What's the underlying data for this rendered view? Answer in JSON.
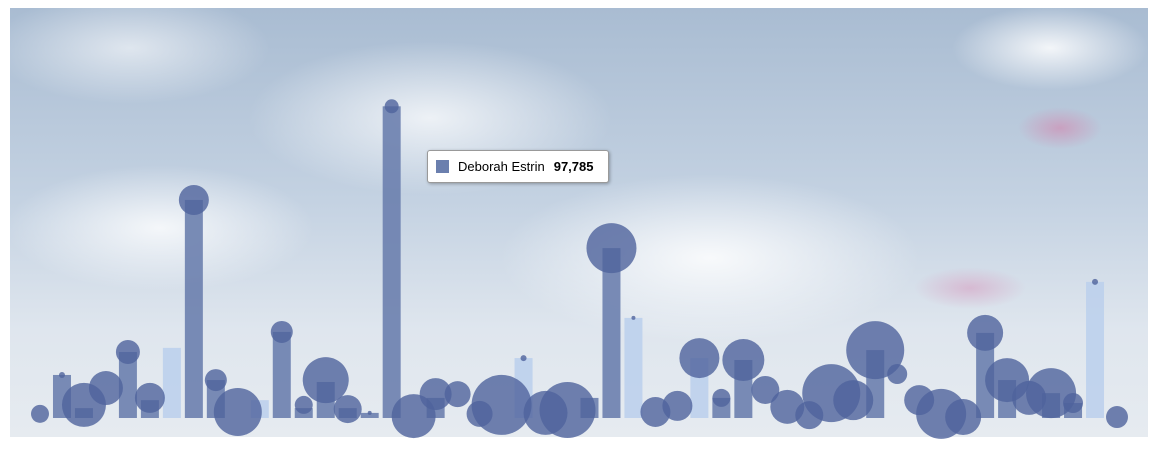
{
  "chart_data": {
    "type": "bar",
    "categories": [
      null,
      null,
      null,
      null,
      null,
      null,
      null,
      null,
      null,
      null,
      null,
      null,
      null,
      null,
      null,
      null,
      null,
      null,
      null,
      null,
      null,
      null,
      null,
      null,
      null,
      null,
      null,
      null,
      null,
      null,
      null,
      null,
      null,
      null,
      null,
      null,
      null,
      null,
      null,
      null,
      null,
      null,
      null,
      null,
      null,
      null,
      null,
      null,
      null,
      null
    ],
    "values": [
      null,
      13500,
      3100,
      null,
      20700,
      5600,
      22000,
      68400,
      11900,
      null,
      5600,
      27000,
      3100,
      11300,
      3100,
      1600,
      97785,
      null,
      6300,
      null,
      null,
      null,
      18800,
      null,
      null,
      6300,
      53300,
      31400,
      null,
      null,
      18800,
      6300,
      18200,
      null,
      null,
      null,
      null,
      null,
      21300,
      null,
      null,
      null,
      null,
      26700,
      11900,
      null,
      7800,
      4700,
      42700,
      null
    ],
    "colors": [
      null,
      "#6b7fae",
      "#6b7fae",
      null,
      "#6b7fae",
      "#6b7fae",
      "#bcd0ec",
      "#6b7fae",
      "#6b7fae",
      null,
      "#bcd0ec",
      "#6b7fae",
      "#6b7fae",
      "#6b7fae",
      "#6b7fae",
      "#6b7fae",
      "#6b7fae",
      null,
      "#6b7fae",
      null,
      null,
      null,
      "#bcd0ec",
      null,
      null,
      "#6b7fae",
      "#6b7fae",
      "#bcd0ec",
      null,
      null,
      "#bcd0ec",
      "#6b7fae",
      "#6b7fae",
      null,
      null,
      null,
      null,
      null,
      "#6b7fae",
      null,
      null,
      null,
      null,
      "#6b7fae",
      "#6b7fae",
      null,
      "#6b7fae",
      "#6b7fae",
      "#bcd0ec",
      null
    ],
    "bubbles": {
      "color": "#4f639c",
      "values": [
        1300,
        13500,
        4100,
        9400,
        20700,
        6300,
        null,
        68400,
        11900,
        1900,
        null,
        27000,
        4100,
        11900,
        2800,
        1600,
        97785,
        600,
        7500,
        7500,
        1300,
        4100,
        18800,
        1600,
        2500,
        null,
        53300,
        31400,
        1900,
        3800,
        18800,
        6300,
        18200,
        8800,
        3500,
        900,
        7800,
        5600,
        21300,
        13800,
        5600,
        1300,
        300,
        26700,
        11900,
        6300,
        7800,
        4700,
        42700,
        300
      ],
      "sizes": [
        9,
        3,
        22,
        17,
        12,
        15,
        null,
        15,
        11,
        24,
        null,
        11,
        9,
        23,
        14,
        2,
        7,
        22,
        16,
        13,
        13,
        30,
        3,
        22,
        28,
        null,
        25,
        2,
        15,
        15,
        20,
        9,
        21,
        14,
        17,
        14,
        29,
        20,
        29,
        10,
        15,
        25,
        18,
        18,
        22,
        17,
        25,
        10,
        3,
        11
      ]
    },
    "ylim": [
      0,
      128000
    ],
    "tooltip": {
      "name": "Deborah Estrin",
      "color": "#6b7fae",
      "value": 97785,
      "label": "97,785"
    }
  }
}
